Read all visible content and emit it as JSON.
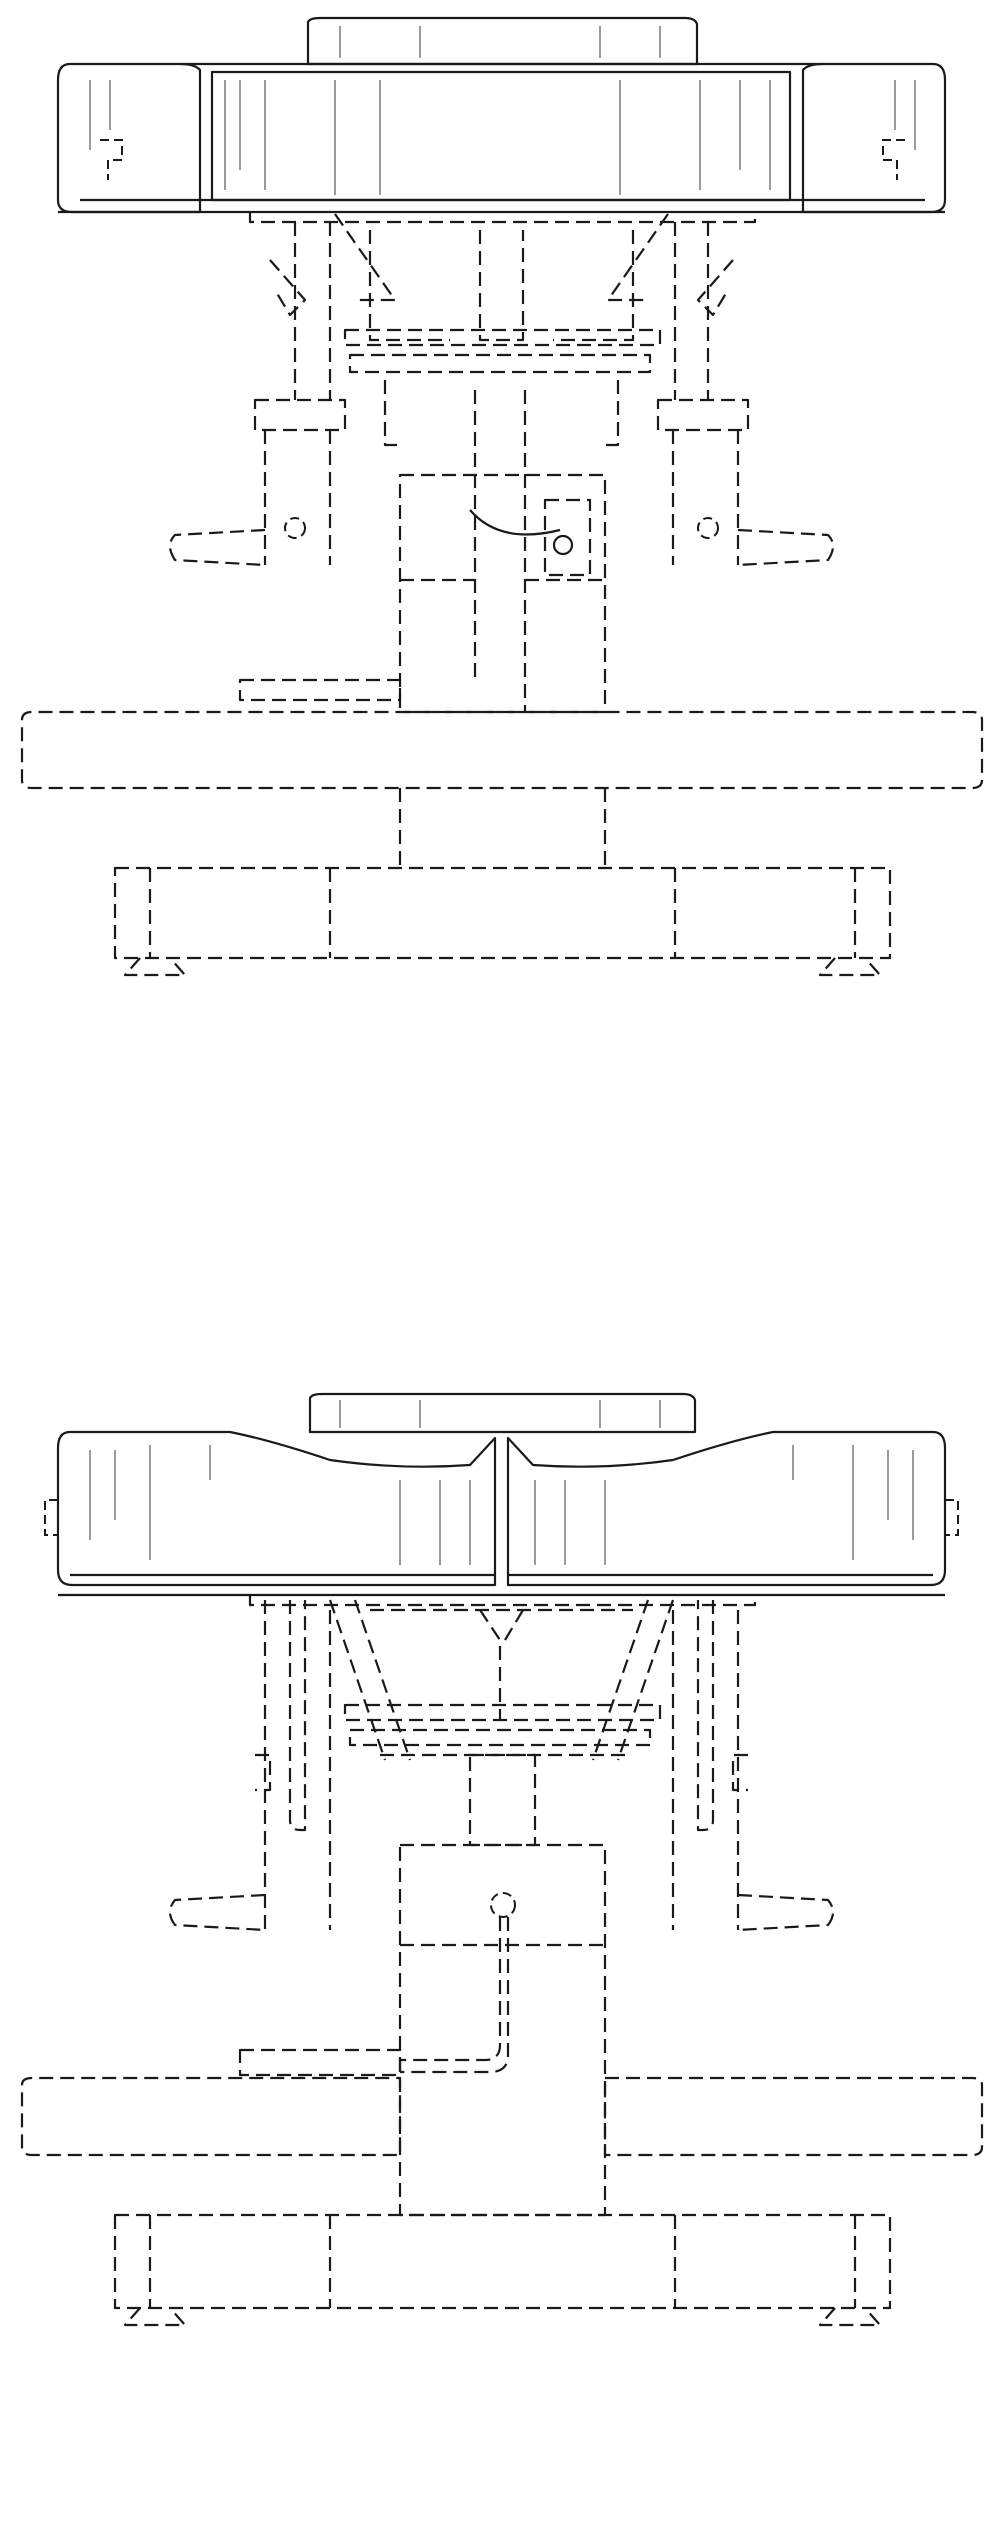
{
  "figure": {
    "view_count": 2,
    "line_color": "#1a1a1a",
    "background": "#ffffff",
    "views": [
      {
        "id": "front-view",
        "solid_part": "seat-cushion",
        "broken_line_part": "chair-base-assembly"
      },
      {
        "id": "rear-view",
        "solid_part": "split-seat-cushion",
        "broken_line_part": "chair-base-assembly"
      }
    ]
  }
}
